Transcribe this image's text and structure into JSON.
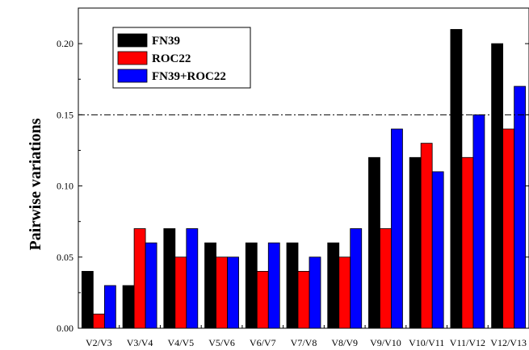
{
  "chart_data": {
    "type": "bar",
    "categories": [
      "V2/V3",
      "V3/V4",
      "V4/V5",
      "V5/V6",
      "V6/V7",
      "V7/V8",
      "V8/V9",
      "V9/V10",
      "V10/V11",
      "V11/V12",
      "V12/V13"
    ],
    "series": [
      {
        "name": "FN39",
        "color": "#000000",
        "values": [
          0.04,
          0.03,
          0.07,
          0.06,
          0.06,
          0.06,
          0.06,
          0.12,
          0.12,
          0.21,
          0.2
        ]
      },
      {
        "name": "ROC22",
        "color": "#ff0000",
        "values": [
          0.01,
          0.07,
          0.05,
          0.05,
          0.04,
          0.04,
          0.05,
          0.07,
          0.13,
          0.12,
          0.14
        ]
      },
      {
        "name": "FN39+ROC22",
        "color": "#0000ff",
        "values": [
          0.03,
          0.06,
          0.07,
          0.05,
          0.06,
          0.05,
          0.07,
          0.14,
          0.11,
          0.15,
          0.17
        ]
      }
    ],
    "title": "",
    "xlabel": "",
    "ylabel": "Pairwise variations",
    "ylim": [
      0.0,
      0.225
    ],
    "yticks": [
      "0.00",
      "0.05",
      "0.10",
      "0.15",
      "0.20"
    ],
    "reference_line": 0.15,
    "legend_position": "top-left",
    "grid": false
  }
}
